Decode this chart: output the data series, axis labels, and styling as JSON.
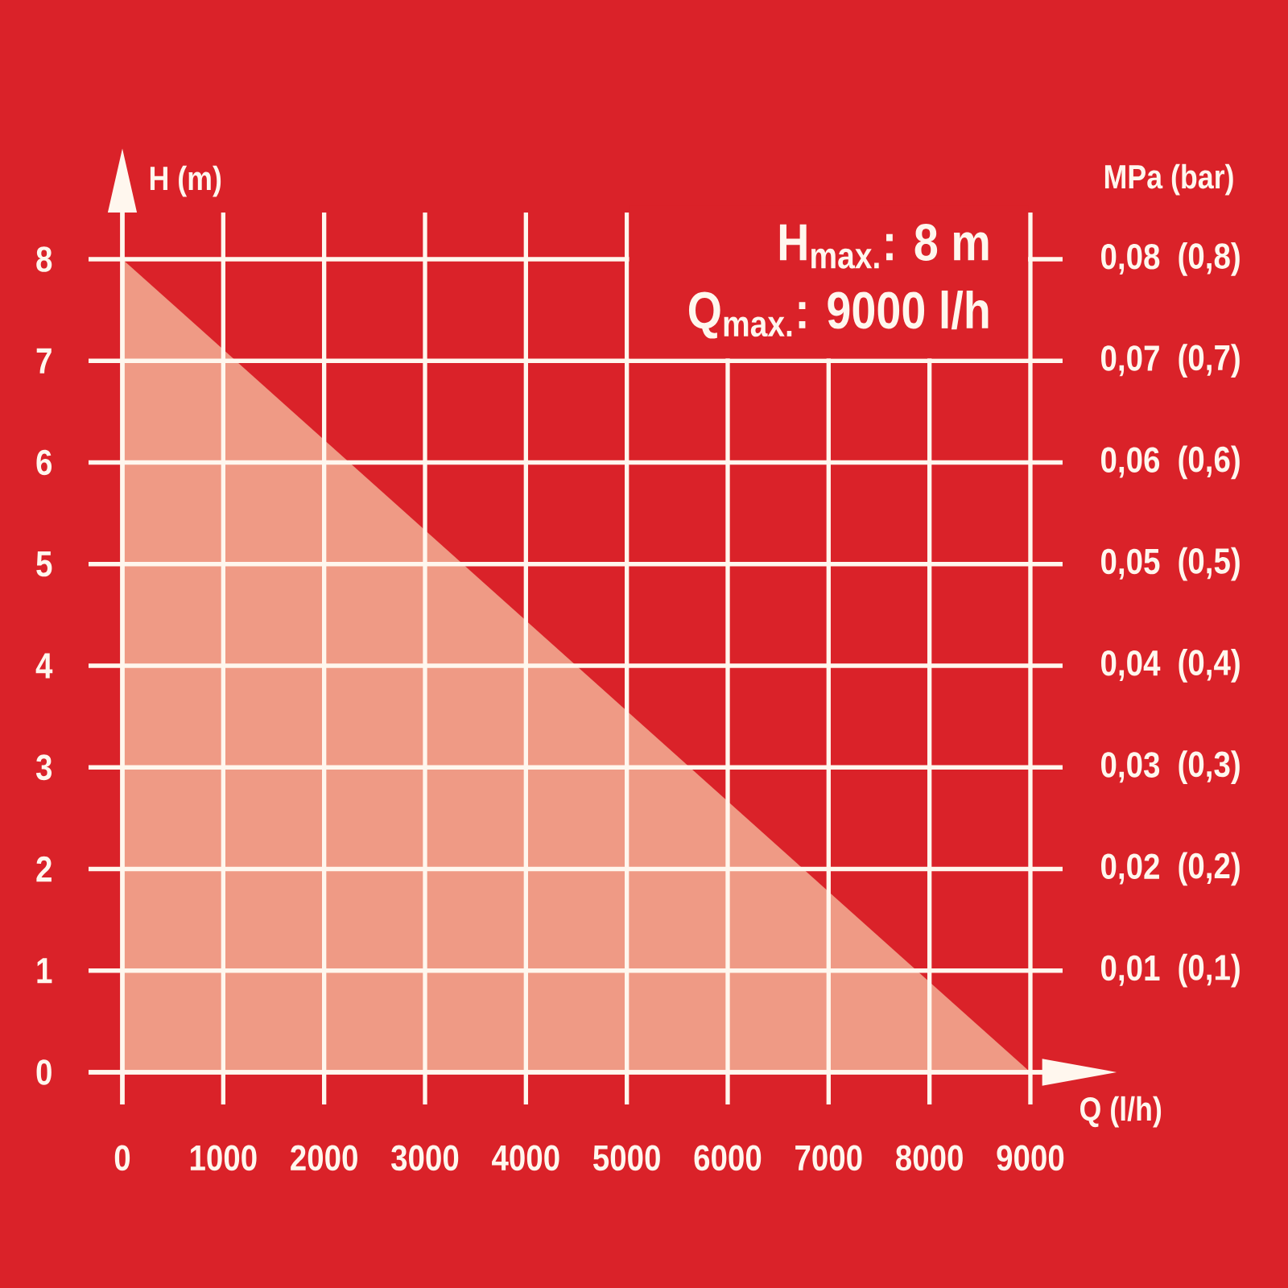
{
  "chart_data": {
    "type": "area",
    "xlabel": "Q (l/h)",
    "ylabel": "H (m)",
    "y2label": "MPa (bar)",
    "annotations": [
      "H$_{max.}$: 8 m",
      "Q$_{max.}$: 9000 l/h"
    ],
    "x": [
      0,
      9000
    ],
    "values": [
      8,
      0
    ],
    "color": "#ef9a85",
    "xlim": [
      0,
      9000
    ],
    "ylim": [
      0,
      8
    ],
    "xticks": [
      0,
      1000,
      2000,
      3000,
      4000,
      5000,
      6000,
      7000,
      8000,
      9000
    ],
    "yticks": [
      0,
      1,
      2,
      3,
      4,
      5,
      6,
      7,
      8
    ],
    "y2lim": [
      0,
      0.08
    ],
    "y2ticks": [
      {
        "value": 0.01,
        "label": "0,01"
      },
      {
        "value": 0.02,
        "label": "0,02"
      },
      {
        "value": 0.03,
        "label": "0,03"
      },
      {
        "value": 0.04,
        "label": "0,04"
      },
      {
        "value": 0.05,
        "label": "0,05"
      },
      {
        "value": 0.06,
        "label": "0,06"
      },
      {
        "value": 0.07,
        "label": "0,07"
      },
      {
        "value": 0.08,
        "label": "0,08"
      }
    ],
    "y3lim": [
      0,
      0.8
    ],
    "y3ticks": [
      {
        "value": 0.1,
        "label": "(0,1)"
      },
      {
        "value": 0.2,
        "label": "(0,2)"
      },
      {
        "value": 0.3,
        "label": "(0,3)"
      },
      {
        "value": 0.4,
        "label": "(0,4)"
      },
      {
        "value": 0.5,
        "label": "(0,5)"
      },
      {
        "value": 0.6,
        "label": "(0,6)"
      },
      {
        "value": 0.7,
        "label": "(0,7)"
      },
      {
        "value": 0.8,
        "label": "(0,8)"
      }
    ],
    "grid": true
  }
}
